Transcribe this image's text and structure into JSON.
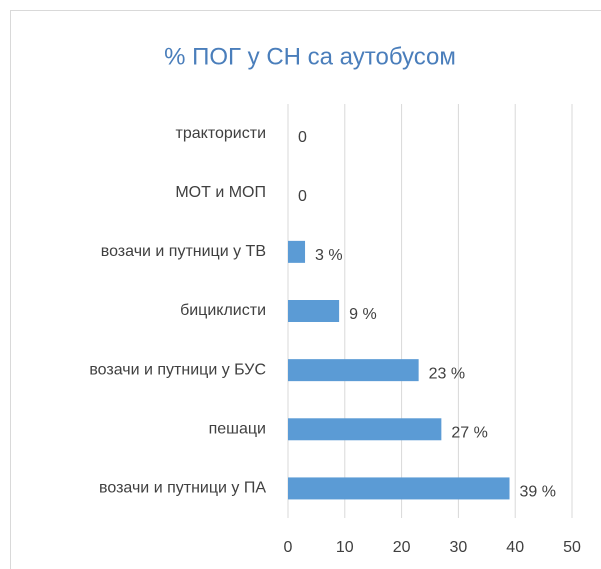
{
  "chart_data": {
    "type": "bar",
    "orientation": "horizontal",
    "title": "% ПОГ у СН са аутобусом",
    "categories": [
      "трактористи",
      "МОТ и МОП",
      "возачи и путници у ТВ",
      "бициклисти",
      "возачи и путници у БУС",
      "пешаци",
      "возачи и путници у ПА"
    ],
    "values": [
      0,
      0,
      3,
      9,
      23,
      27,
      39
    ],
    "value_labels": [
      "0",
      "0",
      "3 %",
      "9 %",
      "23 %",
      "27 %",
      "39 %"
    ],
    "color": "#5b9bd5",
    "xlim": [
      0,
      50
    ],
    "xticks": [
      0,
      10,
      20,
      30,
      40,
      50
    ],
    "grid": true
  }
}
